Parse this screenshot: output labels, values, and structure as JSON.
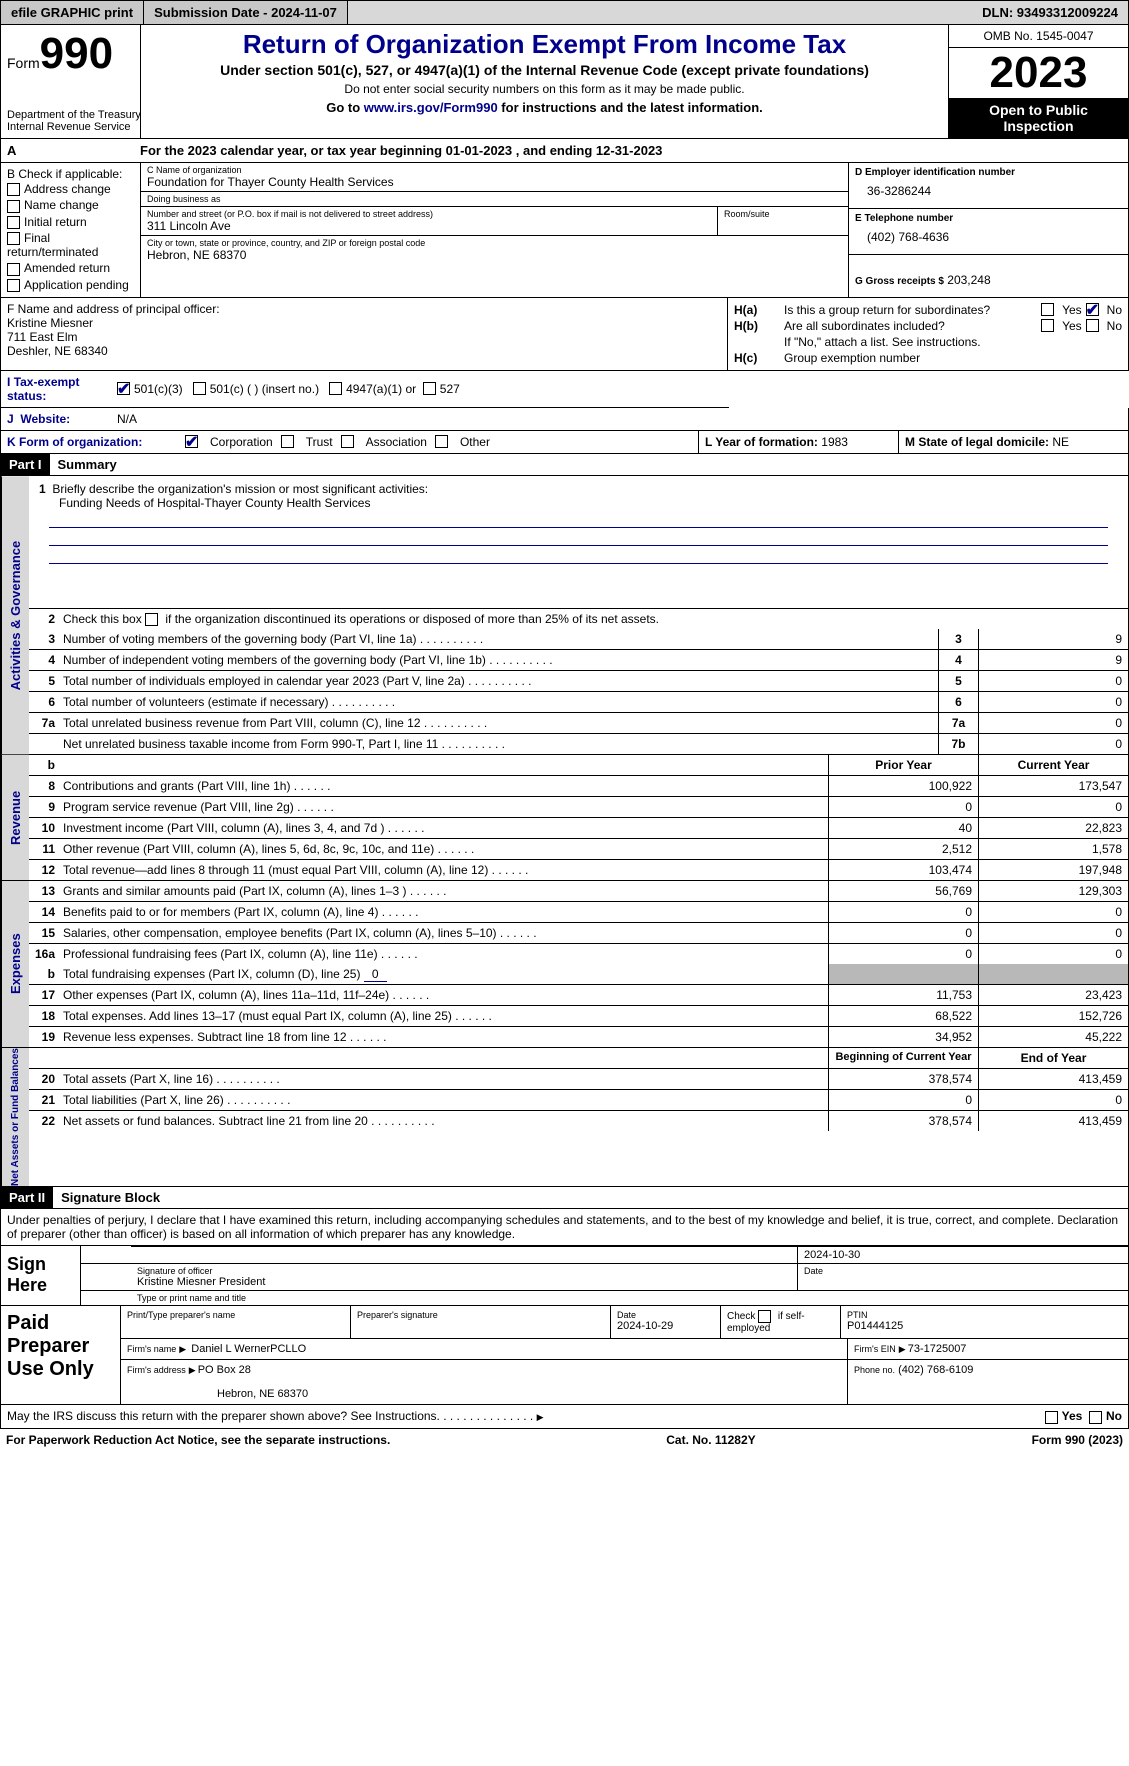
{
  "topbar": {
    "efile": "efile GRAPHIC print",
    "submission": "Submission Date - 2024-11-07",
    "dln": "DLN: 93493312009224"
  },
  "header": {
    "form_prefix": "Form",
    "form_num": "990",
    "dept": "Department of the Treasury\nInternal Revenue Service",
    "title": "Return of Organization Exempt From Income Tax",
    "sub": "Under section 501(c), 527, or 4947(a)(1) of the Internal Revenue Code (except private foundations)",
    "sub2": "Do not enter social security numbers on this form as it may be made public.",
    "sub3": "Go to www.irs.gov/Form990 for instructions and the latest information.",
    "link": "www.irs.gov/Form990",
    "omb": "OMB No. 1545-0047",
    "year": "2023",
    "open": "Open to Public Inspection"
  },
  "lineA": {
    "text": "For the 2023 calendar year, or tax year beginning 01-01-2023   , and ending 12-31-2023",
    "prefix": "A"
  },
  "B": {
    "head": "B Check if applicable:",
    "items": [
      "Address change",
      "Name change",
      "Initial return",
      "Final return/terminated",
      "Amended return",
      "Application pending"
    ]
  },
  "C": {
    "name_lbl": "C Name of organization",
    "name": "Foundation for Thayer County Health Services",
    "dba_lbl": "Doing business as",
    "dba": "",
    "addr_lbl": "Number and street (or P.O. box if mail is not delivered to street address)",
    "addr": "311 Lincoln Ave",
    "room_lbl": "Room/suite",
    "room": "",
    "city_lbl": "City or town, state or province, country, and ZIP or foreign postal code",
    "city": "Hebron, NE  68370"
  },
  "D": {
    "lbl": "D Employer identification number",
    "val": "36-3286244"
  },
  "E": {
    "lbl": "E Telephone number",
    "val": "(402) 768-4636"
  },
  "G": {
    "lbl": "G Gross receipts $",
    "val": "203,248"
  },
  "F": {
    "lbl": "F  Name and address of principal officer:",
    "name": "Kristine Miesner",
    "addr1": "711 East Elm",
    "addr2": "Deshler, NE  68340"
  },
  "H": {
    "a": "Is this a group return for subordinates?",
    "b": "Are all subordinates included?",
    "b2": "If \"No,\" attach a list. See instructions.",
    "c": "Group exemption number",
    "ha": "H(a)",
    "hb": "H(b)",
    "hc": "H(c)",
    "yes": "Yes",
    "no": "No"
  },
  "I": {
    "lbl": "Tax-exempt status:",
    "o1": "501(c)(3)",
    "o2": "501(c) (  ) (insert no.)",
    "o3": "4947(a)(1) or",
    "o4": "527"
  },
  "J": {
    "lbl": "Website:",
    "val": "N/A"
  },
  "K": {
    "lbl": "K Form of organization:",
    "o1": "Corporation",
    "o2": "Trust",
    "o3": "Association",
    "o4": "Other"
  },
  "L": {
    "lbl": "L Year of formation:",
    "val": "1983"
  },
  "M": {
    "lbl": "M State of legal domicile:",
    "val": "NE"
  },
  "part1": {
    "hdr": "Part I",
    "title": "Summary"
  },
  "gov": {
    "tab": "Activities & Governance",
    "l1": "Briefly describe the organization's mission or most significant activities:",
    "l1v": "Funding Needs of Hospital-Thayer County Health Services",
    "l2": "Check this box      if the organization discontinued its operations or disposed of more than 25% of its net assets.",
    "rows": [
      {
        "n": "3",
        "t": "Number of voting members of the governing body (Part VI, line 1a)",
        "b": "3",
        "v": "9"
      },
      {
        "n": "4",
        "t": "Number of independent voting members of the governing body (Part VI, line 1b)",
        "b": "4",
        "v": "9"
      },
      {
        "n": "5",
        "t": "Total number of individuals employed in calendar year 2023 (Part V, line 2a)",
        "b": "5",
        "v": "0"
      },
      {
        "n": "6",
        "t": "Total number of volunteers (estimate if necessary)",
        "b": "6",
        "v": "0"
      },
      {
        "n": "7a",
        "t": "Total unrelated business revenue from Part VIII, column (C), line 12",
        "b": "7a",
        "v": "0"
      },
      {
        "n": "",
        "t": "Net unrelated business taxable income from Form 990-T, Part I, line 11",
        "b": "7b",
        "v": "0"
      }
    ]
  },
  "rev": {
    "tab": "Revenue",
    "hdr_b": "b",
    "hdr_prior": "Prior Year",
    "hdr_curr": "Current Year",
    "rows": [
      {
        "n": "8",
        "t": "Contributions and grants (Part VIII, line 1h)",
        "p": "100,922",
        "c": "173,547"
      },
      {
        "n": "9",
        "t": "Program service revenue (Part VIII, line 2g)",
        "p": "0",
        "c": "0"
      },
      {
        "n": "10",
        "t": "Investment income (Part VIII, column (A), lines 3, 4, and 7d )",
        "p": "40",
        "c": "22,823"
      },
      {
        "n": "11",
        "t": "Other revenue (Part VIII, column (A), lines 5, 6d, 8c, 9c, 10c, and 11e)",
        "p": "2,512",
        "c": "1,578"
      },
      {
        "n": "12",
        "t": "Total revenue—add lines 8 through 11 (must equal Part VIII, column (A), line 12)",
        "p": "103,474",
        "c": "197,948"
      }
    ]
  },
  "exp": {
    "tab": "Expenses",
    "rows": [
      {
        "n": "13",
        "t": "Grants and similar amounts paid (Part IX, column (A), lines 1–3 )",
        "p": "56,769",
        "c": "129,303"
      },
      {
        "n": "14",
        "t": "Benefits paid to or for members (Part IX, column (A), line 4)",
        "p": "0",
        "c": "0"
      },
      {
        "n": "15",
        "t": "Salaries, other compensation, employee benefits (Part IX, column (A), lines 5–10)",
        "p": "0",
        "c": "0"
      },
      {
        "n": "16a",
        "t": "Professional fundraising fees (Part IX, column (A), line 11e)",
        "p": "0",
        "c": "0"
      }
    ],
    "l16b_n": "b",
    "l16b": "Total fundraising expenses (Part IX, column (D), line 25)",
    "l16b_v": "0",
    "rows2": [
      {
        "n": "17",
        "t": "Other expenses (Part IX, column (A), lines 11a–11d, 11f–24e)",
        "p": "11,753",
        "c": "23,423"
      },
      {
        "n": "18",
        "t": "Total expenses. Add lines 13–17 (must equal Part IX, column (A), line 25)",
        "p": "68,522",
        "c": "152,726"
      },
      {
        "n": "19",
        "t": "Revenue less expenses. Subtract line 18 from line 12",
        "p": "34,952",
        "c": "45,222"
      }
    ]
  },
  "net": {
    "tab": "Net Assets or Fund Balances",
    "hdr_beg": "Beginning of Current Year",
    "hdr_end": "End of Year",
    "rows": [
      {
        "n": "20",
        "t": "Total assets (Part X, line 16)",
        "p": "378,574",
        "c": "413,459"
      },
      {
        "n": "21",
        "t": "Total liabilities (Part X, line 26)",
        "p": "0",
        "c": "0"
      },
      {
        "n": "22",
        "t": "Net assets or fund balances. Subtract line 21 from line 20",
        "p": "378,574",
        "c": "413,459"
      }
    ]
  },
  "part2": {
    "hdr": "Part II",
    "title": "Signature Block"
  },
  "sig": {
    "decl": "Under penalties of perjury, I declare that I have examined this return, including accompanying schedules and statements, and to the best of my knowledge and belief, it is true, correct, and complete. Declaration of preparer (other than officer) is based on all information of which preparer has any knowledge.",
    "here": "Sign Here",
    "sig_lbl": "Signature of officer",
    "date_lbl": "Date",
    "date": "2024-10-30",
    "name": "Kristine Miesner President",
    "name_lbl": "Type or print name and title"
  },
  "prep": {
    "here": "Paid Preparer Use Only",
    "h1": "Print/Type preparer's name",
    "h2": "Preparer's signature",
    "h3": "Date",
    "h3v": "2024-10-29",
    "h4": "Check       if self-employed",
    "h5": "PTIN",
    "h5v": "P01444125",
    "firm_lbl": "Firm's name",
    "firm": "Daniel L WernerPCLLO",
    "ein_lbl": "Firm's EIN",
    "ein": "73-1725007",
    "addr_lbl": "Firm's address",
    "addr": "PO Box 28",
    "addr2": "Hebron, NE  68370",
    "phone_lbl": "Phone no.",
    "phone": "(402) 768-6109"
  },
  "footer": {
    "q": "May the IRS discuss this return with the preparer shown above? See Instructions.",
    "yes": "Yes",
    "no": "No",
    "pra": "For Paperwork Reduction Act Notice, see the separate instructions.",
    "cat": "Cat. No. 11282Y",
    "form": "Form 990 (2023)"
  }
}
